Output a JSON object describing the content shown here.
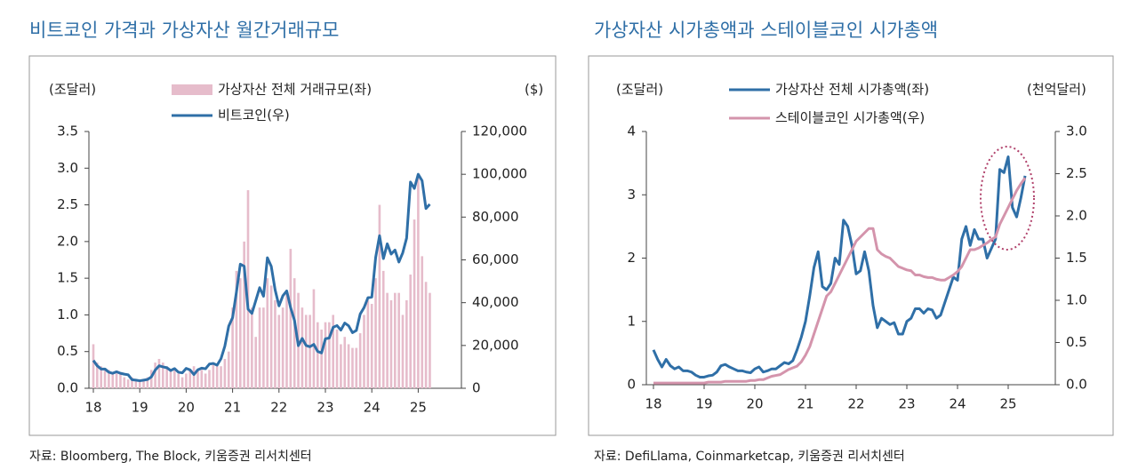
{
  "chart_data": [
    {
      "type": "bar",
      "title": "비트코인 가격과 가상자산 월간거래규모",
      "source": "자료: Bloomberg, The Block, 키움증권 리서치센터",
      "y_label": "(조달러)",
      "y2_label": "($)",
      "categories": [
        "18",
        null,
        null,
        null,
        null,
        null,
        null,
        null,
        null,
        null,
        null,
        null,
        "19",
        null,
        null,
        null,
        null,
        null,
        null,
        null,
        null,
        null,
        null,
        null,
        "20",
        null,
        null,
        null,
        null,
        null,
        null,
        null,
        null,
        null,
        null,
        null,
        "21",
        null,
        null,
        null,
        null,
        null,
        null,
        null,
        null,
        null,
        null,
        null,
        "22",
        null,
        null,
        null,
        null,
        null,
        null,
        null,
        null,
        null,
        null,
        null,
        "23",
        null,
        null,
        null,
        null,
        null,
        null,
        null,
        null,
        null,
        null,
        null,
        "24",
        null,
        null,
        null,
        null,
        null,
        null,
        null,
        null,
        null,
        null,
        null,
        "25",
        null,
        null,
        null
      ],
      "ylim": [
        0,
        3.5
      ],
      "yticks": [
        {
          "value": 0,
          "label": "0.0"
        },
        0.5,
        {
          "value": 1,
          "label": "1.0"
        },
        1.5,
        {
          "value": 2,
          "label": "2.0"
        },
        2.5,
        {
          "value": 3,
          "label": "3.0"
        },
        3.5
      ],
      "y2lim": [
        0,
        120000
      ],
      "y2ticks": [
        0,
        {
          "value": 20000,
          "label": "20,000"
        },
        {
          "value": 40000,
          "label": "40,000"
        },
        {
          "value": 60000,
          "label": "60,000"
        },
        {
          "value": 80000,
          "label": "80,000"
        },
        {
          "value": 100000,
          "label": "100,000"
        },
        {
          "value": 120000,
          "label": "120,000"
        }
      ],
      "series": [
        {
          "name": "가상자산 전체 거래규모(좌)",
          "type": "bar",
          "color": "#e6bccb",
          "values": [
            0.6,
            0.35,
            0.3,
            0.25,
            0.25,
            0.2,
            0.2,
            0.2,
            0.15,
            0.12,
            0.15,
            0.12,
            0.12,
            0.12,
            0.15,
            0.25,
            0.35,
            0.4,
            0.35,
            0.3,
            0.25,
            0.25,
            0.2,
            0.15,
            0.2,
            0.25,
            0.3,
            0.25,
            0.25,
            0.2,
            0.25,
            0.35,
            0.3,
            0.3,
            0.4,
            0.5,
            1.1,
            1.6,
            1.5,
            2.0,
            2.7,
            1.1,
            0.7,
            1.1,
            1.1,
            1.5,
            1.4,
            1.2,
            1.0,
            1.1,
            1.3,
            1.9,
            1.5,
            1.3,
            1.1,
            1.0,
            1.0,
            1.35,
            0.9,
            0.8,
            0.9,
            0.9,
            1.0,
            0.8,
            0.6,
            0.7,
            0.6,
            0.55,
            0.55,
            0.75,
            1.0,
            1.2,
            1.15,
            1.5,
            2.5,
            1.6,
            1.3,
            1.2,
            1.3,
            1.3,
            1.0,
            1.2,
            1.55,
            2.3,
            2.9,
            1.8,
            1.45,
            1.3
          ]
        },
        {
          "name": "비트코인(우)",
          "type": "line",
          "axis": "y2",
          "color": "#2f6fa7",
          "values": [
            13000,
            10500,
            9000,
            9000,
            7500,
            7000,
            7700,
            7000,
            6600,
            6300,
            4000,
            3800,
            3500,
            3800,
            4100,
            5300,
            8500,
            10500,
            10000,
            9600,
            8300,
            9200,
            7500,
            7200,
            9300,
            8600,
            6400,
            8600,
            9400,
            9100,
            11300,
            11600,
            10800,
            13800,
            19700,
            29000,
            33000,
            45000,
            58000,
            57000,
            37000,
            35000,
            41000,
            47000,
            43000,
            61000,
            57000,
            46000,
            38500,
            43200,
            45500,
            37700,
            31800,
            19900,
            23300,
            20000,
            19400,
            20500,
            17200,
            16500,
            23100,
            23500,
            28500,
            29300,
            27200,
            30500,
            29200,
            26000,
            27000,
            34700,
            37700,
            42300,
            42600,
            61200,
            71300,
            60600,
            67500,
            62700,
            64600,
            59000,
            63300,
            70200,
            96400,
            93400,
            100000,
            97000,
            84000,
            86000
          ]
        }
      ]
    },
    {
      "type": "line",
      "title": "가상자산 시가총액과 스테이블코인 시가총액",
      "source": "자료: DefiLlama, Coinmarketcap, 키움증권 리서치센터",
      "y_label": "(조달러)",
      "y2_label": "(천억달러)",
      "categories": [
        "18",
        null,
        null,
        null,
        null,
        null,
        null,
        null,
        null,
        null,
        null,
        null,
        "19",
        null,
        null,
        null,
        null,
        null,
        null,
        null,
        null,
        null,
        null,
        null,
        "20",
        null,
        null,
        null,
        null,
        null,
        null,
        null,
        null,
        null,
        null,
        null,
        "21",
        null,
        null,
        null,
        null,
        null,
        null,
        null,
        null,
        null,
        null,
        null,
        "22",
        null,
        null,
        null,
        null,
        null,
        null,
        null,
        null,
        null,
        null,
        null,
        "23",
        null,
        null,
        null,
        null,
        null,
        null,
        null,
        null,
        null,
        null,
        null,
        "24",
        null,
        null,
        null,
        null,
        null,
        null,
        null,
        null,
        null,
        null,
        null,
        "25",
        null,
        null,
        null,
        null
      ],
      "ylim": [
        0,
        4
      ],
      "yticks": [
        0,
        1,
        2,
        3,
        4
      ],
      "y2lim": [
        0,
        3
      ],
      "y2ticks": [
        {
          "value": 0,
          "label": "0.0"
        },
        0.5,
        {
          "value": 1,
          "label": "1.0"
        },
        1.5,
        {
          "value": 2,
          "label": "2.0"
        },
        2.5,
        {
          "value": 3,
          "label": "3.0"
        }
      ],
      "series": [
        {
          "name": "가상자산 전체 시가총액(좌)",
          "color": "#2f6fa7",
          "values": [
            0.55,
            0.4,
            0.28,
            0.4,
            0.3,
            0.25,
            0.28,
            0.22,
            0.22,
            0.2,
            0.15,
            0.12,
            0.12,
            0.14,
            0.15,
            0.2,
            0.3,
            0.32,
            0.28,
            0.25,
            0.22,
            0.22,
            0.2,
            0.19,
            0.25,
            0.28,
            0.2,
            0.22,
            0.25,
            0.25,
            0.3,
            0.35,
            0.33,
            0.38,
            0.55,
            0.75,
            1.0,
            1.4,
            1.85,
            2.1,
            1.55,
            1.5,
            1.6,
            2.0,
            1.9,
            2.6,
            2.5,
            2.2,
            1.75,
            1.8,
            2.1,
            1.8,
            1.25,
            0.9,
            1.05,
            1.0,
            0.95,
            0.98,
            0.8,
            0.8,
            1.0,
            1.05,
            1.2,
            1.2,
            1.13,
            1.2,
            1.18,
            1.05,
            1.1,
            1.3,
            1.5,
            1.7,
            1.65,
            2.3,
            2.5,
            2.2,
            2.45,
            2.3,
            2.3,
            2.0,
            2.15,
            2.3,
            3.4,
            3.35,
            3.6,
            2.8,
            2.65,
            2.95,
            3.3
          ]
        },
        {
          "name": "스테이블코인 시가총액(우)",
          "axis": "y2",
          "color": "#d494ac",
          "values": [
            0.02,
            0.02,
            0.02,
            0.02,
            0.02,
            0.02,
            0.02,
            0.02,
            0.02,
            0.02,
            0.02,
            0.02,
            0.02,
            0.03,
            0.03,
            0.03,
            0.03,
            0.04,
            0.04,
            0.04,
            0.04,
            0.04,
            0.04,
            0.05,
            0.05,
            0.06,
            0.06,
            0.08,
            0.1,
            0.11,
            0.12,
            0.15,
            0.18,
            0.2,
            0.22,
            0.27,
            0.35,
            0.45,
            0.6,
            0.75,
            0.9,
            1.05,
            1.1,
            1.2,
            1.3,
            1.4,
            1.5,
            1.6,
            1.7,
            1.75,
            1.8,
            1.85,
            1.85,
            1.6,
            1.55,
            1.52,
            1.5,
            1.45,
            1.4,
            1.38,
            1.36,
            1.35,
            1.3,
            1.3,
            1.28,
            1.27,
            1.27,
            1.25,
            1.24,
            1.24,
            1.27,
            1.3,
            1.34,
            1.4,
            1.5,
            1.6,
            1.6,
            1.62,
            1.65,
            1.68,
            1.72,
            1.75,
            1.9,
            2.0,
            2.1,
            2.2,
            2.3,
            2.38,
            2.45
          ]
        }
      ]
    }
  ]
}
